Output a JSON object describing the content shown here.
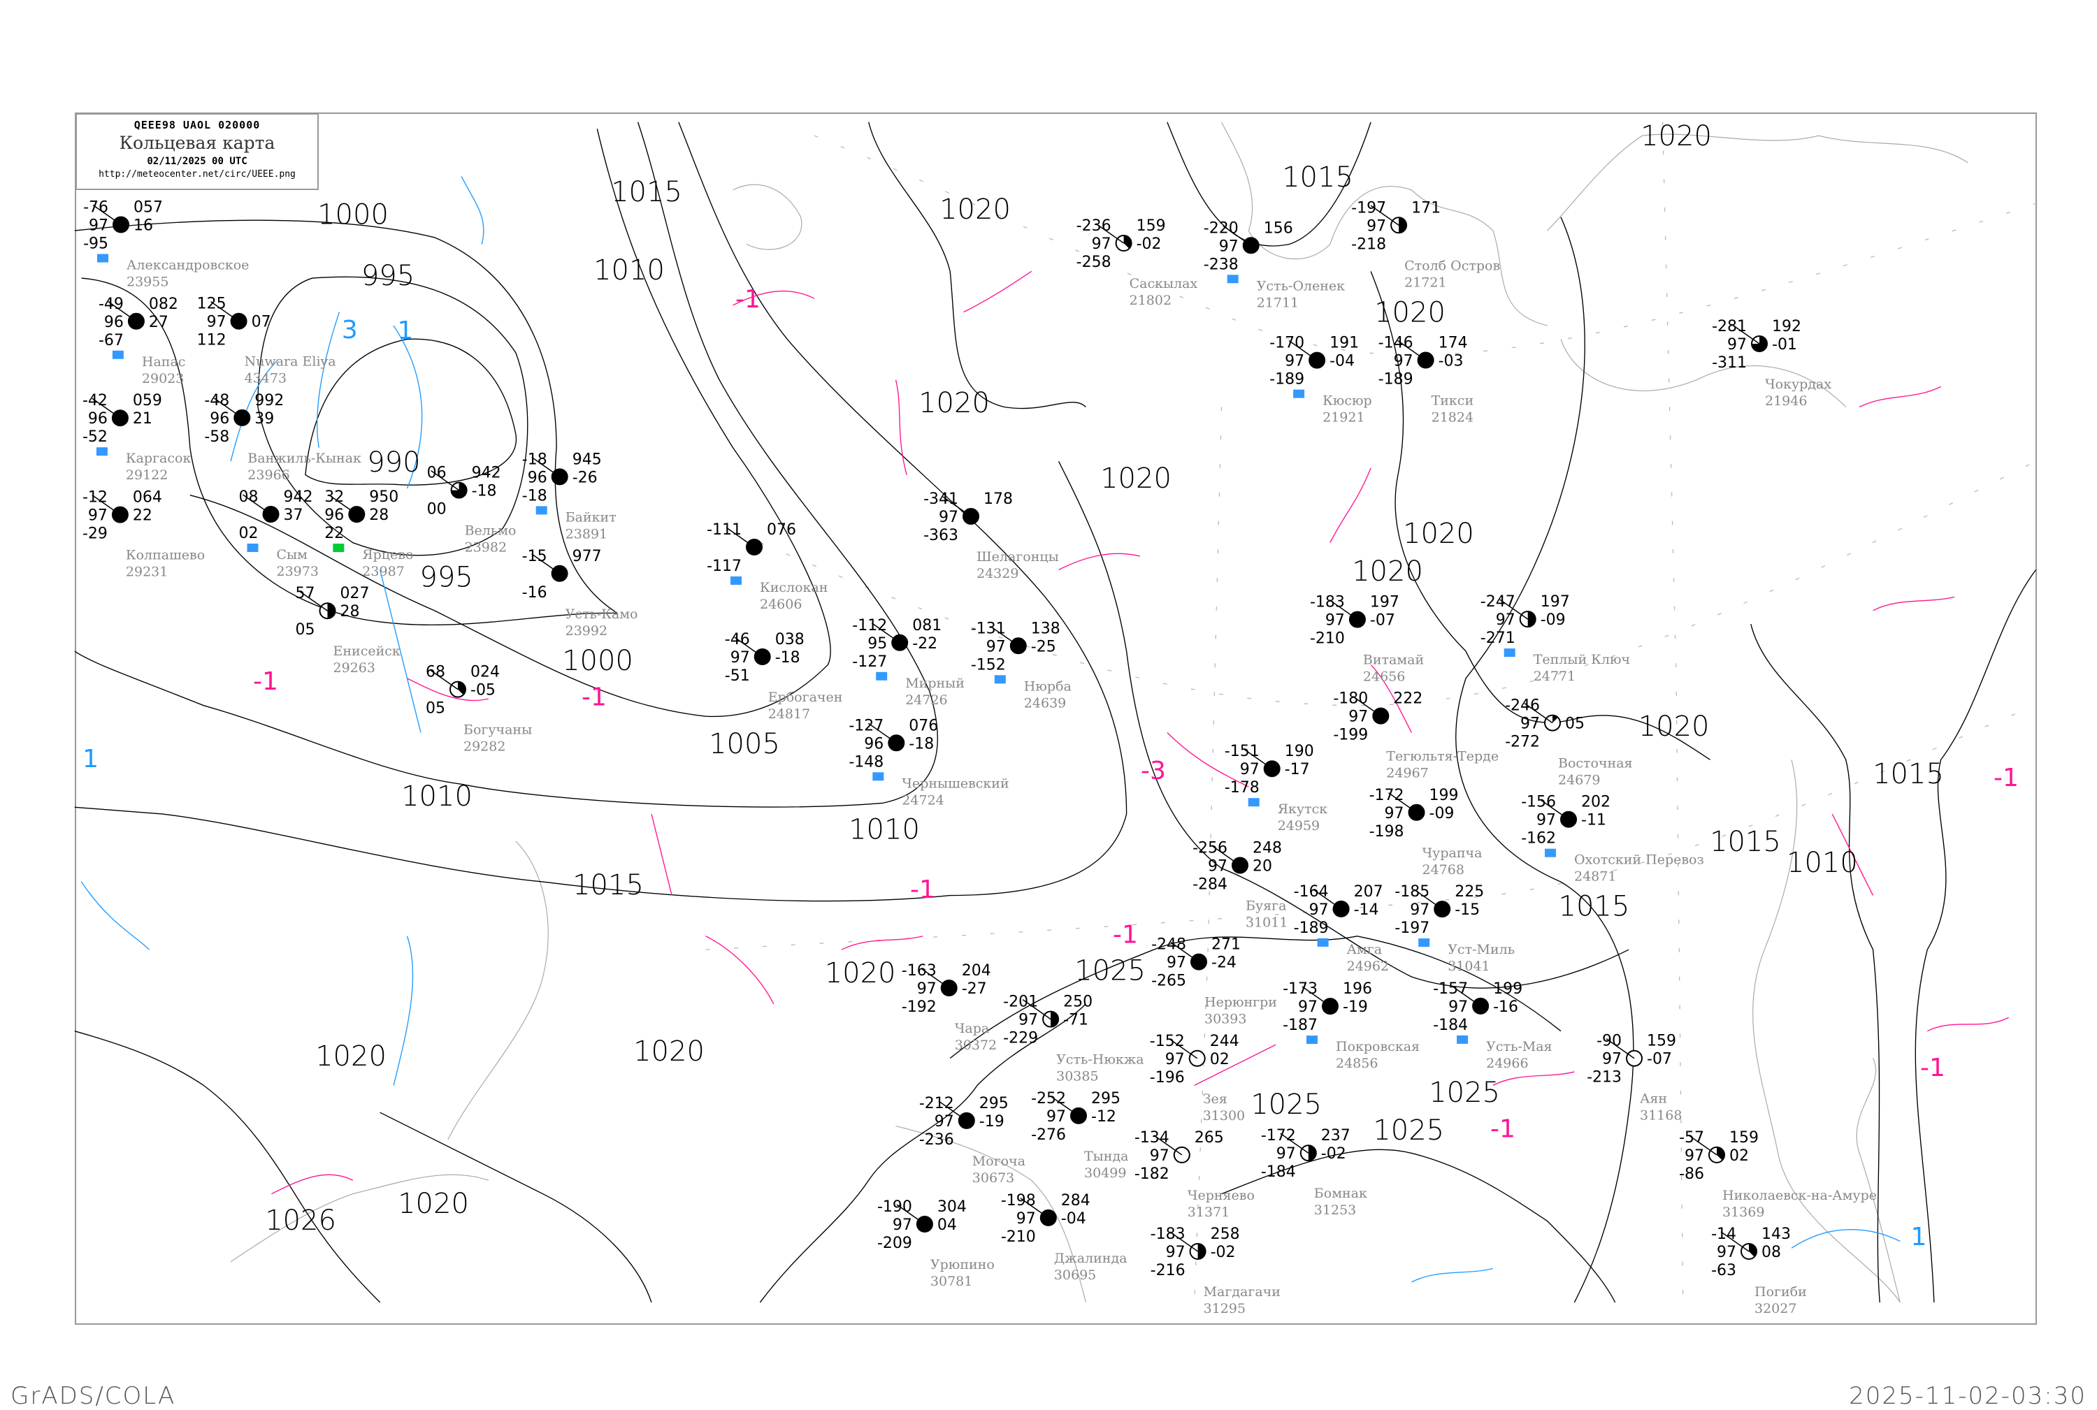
{
  "header": {
    "code": "QEEE98  UAOL  020000",
    "title": "Кольцевая карта",
    "datetime": "02/11/2025 00 UTC",
    "url": "http://meteocenter.net/circ/UEEE.png"
  },
  "footer": {
    "software": "GrADS/COLA",
    "generated": "2025-11-02-03:30"
  },
  "colors": {
    "isobar": "#000000",
    "coastline": "#a8a8a8",
    "isotherm_negative": "#ff1493",
    "isotherm_positive": "#1e9bff",
    "snow_marker": "#3399ff",
    "green_marker": "#00cc33",
    "yellow_marker": "#ffee00"
  },
  "isobar_labels": [
    "1000",
    "995",
    "990",
    "995",
    "1000",
    "1005",
    "1010",
    "1015",
    "1010",
    "1010",
    "1015",
    "1020",
    "1020",
    "1020",
    "1020",
    "1020",
    "1020",
    "1025",
    "1025",
    "1025",
    "1025",
    "1020",
    "1020",
    "1020",
    "1020",
    "1015",
    "1015",
    "1010",
    "1015",
    "1015",
    "1020",
    "1026",
    "1020"
  ],
  "isotherm_labels": [
    "3",
    "1",
    "1",
    "-1",
    "-1",
    "-1",
    "-1",
    "-3",
    "-1",
    "-1",
    "-1",
    "-1",
    "1"
  ],
  "stations": [
    {
      "name": "Александровское",
      "id": "23955",
      "temp": "-76",
      "vis": "97",
      "dew": "-95",
      "pressure": "057",
      "tendency": "16",
      "cloud": 8,
      "marker": "snow"
    },
    {
      "name": "Nuwara Eliya",
      "id": "43473",
      "temp": "125",
      "vis": "97",
      "dew": "112",
      "pressure": "",
      "tendency": "07",
      "cloud": 8,
      "marker": ""
    },
    {
      "name": "Каргасок",
      "id": "29122",
      "temp": "-42",
      "vis": "96",
      "dew": "-52",
      "pressure": "059",
      "tendency": "21",
      "cloud": 8,
      "marker": "snow"
    },
    {
      "name": "Напас",
      "id": "29023",
      "temp": "-49",
      "vis": "96",
      "dew": "-67",
      "pressure": "082",
      "tendency": "27",
      "cloud": 8,
      "marker": "snow"
    },
    {
      "name": "Ванжиль-Кынак",
      "id": "23966",
      "temp": "-48",
      "vis": "96",
      "dew": "-58",
      "pressure": "992",
      "tendency": "39",
      "cloud": 8,
      "marker": ""
    },
    {
      "name": "Колпашево",
      "id": "29231",
      "temp": "-12",
      "vis": "97",
      "dew": "-29",
      "pressure": "064",
      "tendency": "22",
      "cloud": 8,
      "marker": ""
    },
    {
      "name": "Сым",
      "id": "23973",
      "temp": "08",
      "vis": "",
      "dew": "02",
      "pressure": "942",
      "tendency": "37",
      "cloud": 8,
      "marker": "snow"
    },
    {
      "name": "Ярцево",
      "id": "23987",
      "temp": "32",
      "vis": "96",
      "dew": "22",
      "pressure": "950",
      "tendency": "28",
      "cloud": 8,
      "marker": "green"
    },
    {
      "name": "Вельмо",
      "id": "23982",
      "temp": "06",
      "vis": "",
      "dew": "00",
      "pressure": "942",
      "tendency": "-18",
      "cloud": 6,
      "marker": ""
    },
    {
      "name": "Байкит",
      "id": "23891",
      "temp": "-18",
      "vis": "96",
      "dew": "-18",
      "pressure": "945",
      "tendency": "-26",
      "cloud": 8,
      "marker": "snow"
    },
    {
      "name": "Усть-Камо",
      "id": "23992",
      "temp": "-15",
      "vis": "",
      "dew": "-16",
      "pressure": "977",
      "tendency": "",
      "cloud": 8,
      "marker": ""
    },
    {
      "name": "Енисейск",
      "id": "29263",
      "temp": "57",
      "vis": "",
      "dew": "05",
      "pressure": "027",
      "tendency": "28",
      "cloud": 4,
      "marker": ""
    },
    {
      "name": "Богучаны",
      "id": "29282",
      "temp": "68",
      "vis": "",
      "dew": "05",
      "pressure": "024",
      "tendency": "-05",
      "cloud": 3,
      "marker": ""
    },
    {
      "name": "Кислокан",
      "id": "24606",
      "temp": "-111",
      "vis": "",
      "dew": "-117",
      "pressure": "076",
      "tendency": "",
      "cloud": 8,
      "marker": "snow"
    },
    {
      "name": "Шелагонцы",
      "id": "24329",
      "temp": "-341",
      "vis": "97",
      "dew": "-363",
      "pressure": "178",
      "tendency": "",
      "cloud": 8,
      "marker": ""
    },
    {
      "name": "Ербогачен",
      "id": "24817",
      "temp": "-46",
      "vis": "97",
      "dew": "-51",
      "pressure": "038",
      "tendency": "-18",
      "cloud": 8,
      "marker": ""
    },
    {
      "name": "Чернышевский",
      "id": "24724",
      "temp": "-127",
      "vis": "96",
      "dew": "-148",
      "pressure": "076",
      "tendency": "-18",
      "cloud": 8,
      "marker": "snow"
    },
    {
      "name": "Мирный",
      "id": "24726",
      "temp": "-112",
      "vis": "95",
      "dew": "-127",
      "pressure": "081",
      "tendency": "-22",
      "cloud": 8,
      "marker": "snow"
    },
    {
      "name": "Нюрба",
      "id": "24639",
      "temp": "-131",
      "vis": "97",
      "dew": "-152",
      "pressure": "138",
      "tendency": "-25",
      "cloud": 8,
      "marker": "snow"
    },
    {
      "name": "Саскылах",
      "id": "21802",
      "temp": "-236",
      "vis": "97",
      "dew": "-258",
      "pressure": "159",
      "tendency": "-02",
      "cloud": 3,
      "marker": ""
    },
    {
      "name": "Усть-Оленек",
      "id": "21711",
      "temp": "-220",
      "vis": "97",
      "dew": "-238",
      "pressure": "156",
      "tendency": "",
      "cloud": 8,
      "marker": "snow"
    },
    {
      "name": "Столб Остров",
      "id": "21721",
      "temp": "-197",
      "vis": "97",
      "dew": "-218",
      "pressure": "171",
      "tendency": "",
      "cloud": 4,
      "marker": ""
    },
    {
      "name": "Тикси",
      "id": "21824",
      "temp": "-146",
      "vis": "97",
      "dew": "-189",
      "pressure": "174",
      "tendency": "-03",
      "cloud": 8,
      "marker": ""
    },
    {
      "name": "Кюсюр",
      "id": "21921",
      "temp": "-170",
      "vis": "97",
      "dew": "-189",
      "pressure": "191",
      "tendency": "-04",
      "cloud": 8,
      "marker": "snow"
    },
    {
      "name": "Чокурдах",
      "id": "21946",
      "temp": "-281",
      "vis": "97",
      "dew": "-311",
      "pressure": "192",
      "tendency": "-01",
      "cloud": 6,
      "marker": ""
    },
    {
      "name": "Витамай",
      "id": "24656",
      "temp": "-183",
      "vis": "97",
      "dew": "-210",
      "pressure": "197",
      "tendency": "-07",
      "cloud": 8,
      "marker": ""
    },
    {
      "name": "Якутск",
      "id": "24959",
      "temp": "-151",
      "vis": "97",
      "dew": "-178",
      "pressure": "190",
      "tendency": "-17",
      "cloud": 8,
      "marker": "snow"
    },
    {
      "name": "Покровская",
      "id": "24856",
      "temp": "-173",
      "vis": "97",
      "dew": "-187",
      "pressure": "196",
      "tendency": "-19",
      "cloud": 8,
      "marker": "snow"
    },
    {
      "name": "Чурапча",
      "id": "24768",
      "temp": "-172",
      "vis": "97",
      "dew": "-198",
      "pressure": "199",
      "tendency": "-09",
      "cloud": 8,
      "marker": ""
    },
    {
      "name": "Охотский Перевоз",
      "id": "24871",
      "temp": "-156",
      "vis": "97",
      "dew": "-162",
      "pressure": "202",
      "tendency": "-11",
      "cloud": 8,
      "marker": "snow"
    },
    {
      "name": "Теплый Ключ",
      "id": "24771",
      "temp": "-247",
      "vis": "97",
      "dew": "-271",
      "pressure": "197",
      "tendency": "-09",
      "cloud": 4,
      "marker": "snow"
    },
    {
      "name": "Восточная",
      "id": "24679",
      "temp": "-246",
      "vis": "97",
      "dew": "-272",
      "pressure": "",
      "tendency": "05",
      "cloud": 1,
      "marker": ""
    },
    {
      "name": "Амга",
      "id": "24962",
      "temp": "-164",
      "vis": "97",
      "dew": "-189",
      "pressure": "207",
      "tendency": "-14",
      "cloud": 8,
      "marker": "snow"
    },
    {
      "name": "Усть-Мая",
      "id": "24966",
      "temp": "-157",
      "vis": "97",
      "dew": "-184",
      "pressure": "199",
      "tendency": "-16",
      "cloud": 8,
      "marker": "snow"
    },
    {
      "name": "Тегюльтя-Терде",
      "id": "24967",
      "temp": "-180",
      "vis": "97",
      "dew": "-199",
      "pressure": "222",
      "tendency": "",
      "cloud": 8,
      "marker": ""
    },
    {
      "name": "Уст-Миль",
      "id": "31041",
      "temp": "-185",
      "vis": "97",
      "dew": "-197",
      "pressure": "225",
      "tendency": "-15",
      "cloud": 8,
      "marker": "snow"
    },
    {
      "name": "Буяга",
      "id": "31011",
      "temp": "-256",
      "vis": "97",
      "dew": "-284",
      "pressure": "248",
      "tendency": "20",
      "cloud": 8,
      "marker": ""
    },
    {
      "name": "Чара",
      "id": "30372",
      "temp": "-163",
      "vis": "97",
      "dew": "-192",
      "pressure": "204",
      "tendency": "-27",
      "cloud": 8,
      "marker": ""
    },
    {
      "name": "Усть-Нюкжа",
      "id": "30385",
      "temp": "-201",
      "vis": "97",
      "dew": "-229",
      "pressure": "250",
      "tendency": "-71",
      "cloud": 4,
      "marker": ""
    },
    {
      "name": "Нерюнгри",
      "id": "30393",
      "temp": "-248",
      "vis": "97",
      "dew": "-265",
      "pressure": "271",
      "tendency": "-24",
      "cloud": 8,
      "marker": ""
    },
    {
      "name": "Тында",
      "id": "30499",
      "temp": "-252",
      "vis": "97",
      "dew": "-276",
      "pressure": "295",
      "tendency": "-12",
      "cloud": 8,
      "marker": ""
    },
    {
      "name": "Могоча",
      "id": "30673",
      "temp": "-212",
      "vis": "97",
      "dew": "-236",
      "pressure": "295",
      "tendency": "-19",
      "cloud": 8,
      "marker": ""
    },
    {
      "name": "Джалинда",
      "id": "30695",
      "temp": "-198",
      "vis": "97",
      "dew": "-210",
      "pressure": "284",
      "tendency": "-04",
      "cloud": 8,
      "marker": ""
    },
    {
      "name": "Урюпино",
      "id": "30781",
      "temp": "-190",
      "vis": "97",
      "dew": "-209",
      "pressure": "304",
      "tendency": "04",
      "cloud": 8,
      "marker": ""
    },
    {
      "name": "Магдагачи",
      "id": "31295",
      "temp": "-183",
      "vis": "97",
      "dew": "-216",
      "pressure": "258",
      "tendency": "-02",
      "cloud": 4,
      "marker": ""
    },
    {
      "name": "Зея",
      "id": "31300",
      "temp": "-152",
      "vis": "97",
      "dew": "-196",
      "pressure": "244",
      "tendency": "02",
      "cloud": 0,
      "marker": ""
    },
    {
      "name": "Бомнак",
      "id": "31253",
      "temp": "-172",
      "vis": "97",
      "dew": "-184",
      "pressure": "237",
      "tendency": "-02",
      "cloud": 4,
      "marker": ""
    },
    {
      "name": "Черняево",
      "id": "31371",
      "temp": "-134",
      "vis": "97",
      "dew": "-182",
      "pressure": "265",
      "tendency": "",
      "cloud": 0,
      "marker": ""
    },
    {
      "name": "Аян",
      "id": "31168",
      "temp": "-90",
      "vis": "97",
      "dew": "-213",
      "pressure": "159",
      "tendency": "-07",
      "cloud": 0,
      "marker": ""
    },
    {
      "name": "Николаевск-на-Амуре",
      "id": "31369",
      "temp": "-57",
      "vis": "97",
      "dew": "-86",
      "pressure": "159",
      "tendency": "02",
      "cloud": 3,
      "marker": ""
    },
    {
      "name": "Погиби",
      "id": "32027",
      "temp": "-14",
      "vis": "97",
      "dew": "-63",
      "pressure": "143",
      "tendency": "08",
      "cloud": 3,
      "marker": ""
    }
  ]
}
